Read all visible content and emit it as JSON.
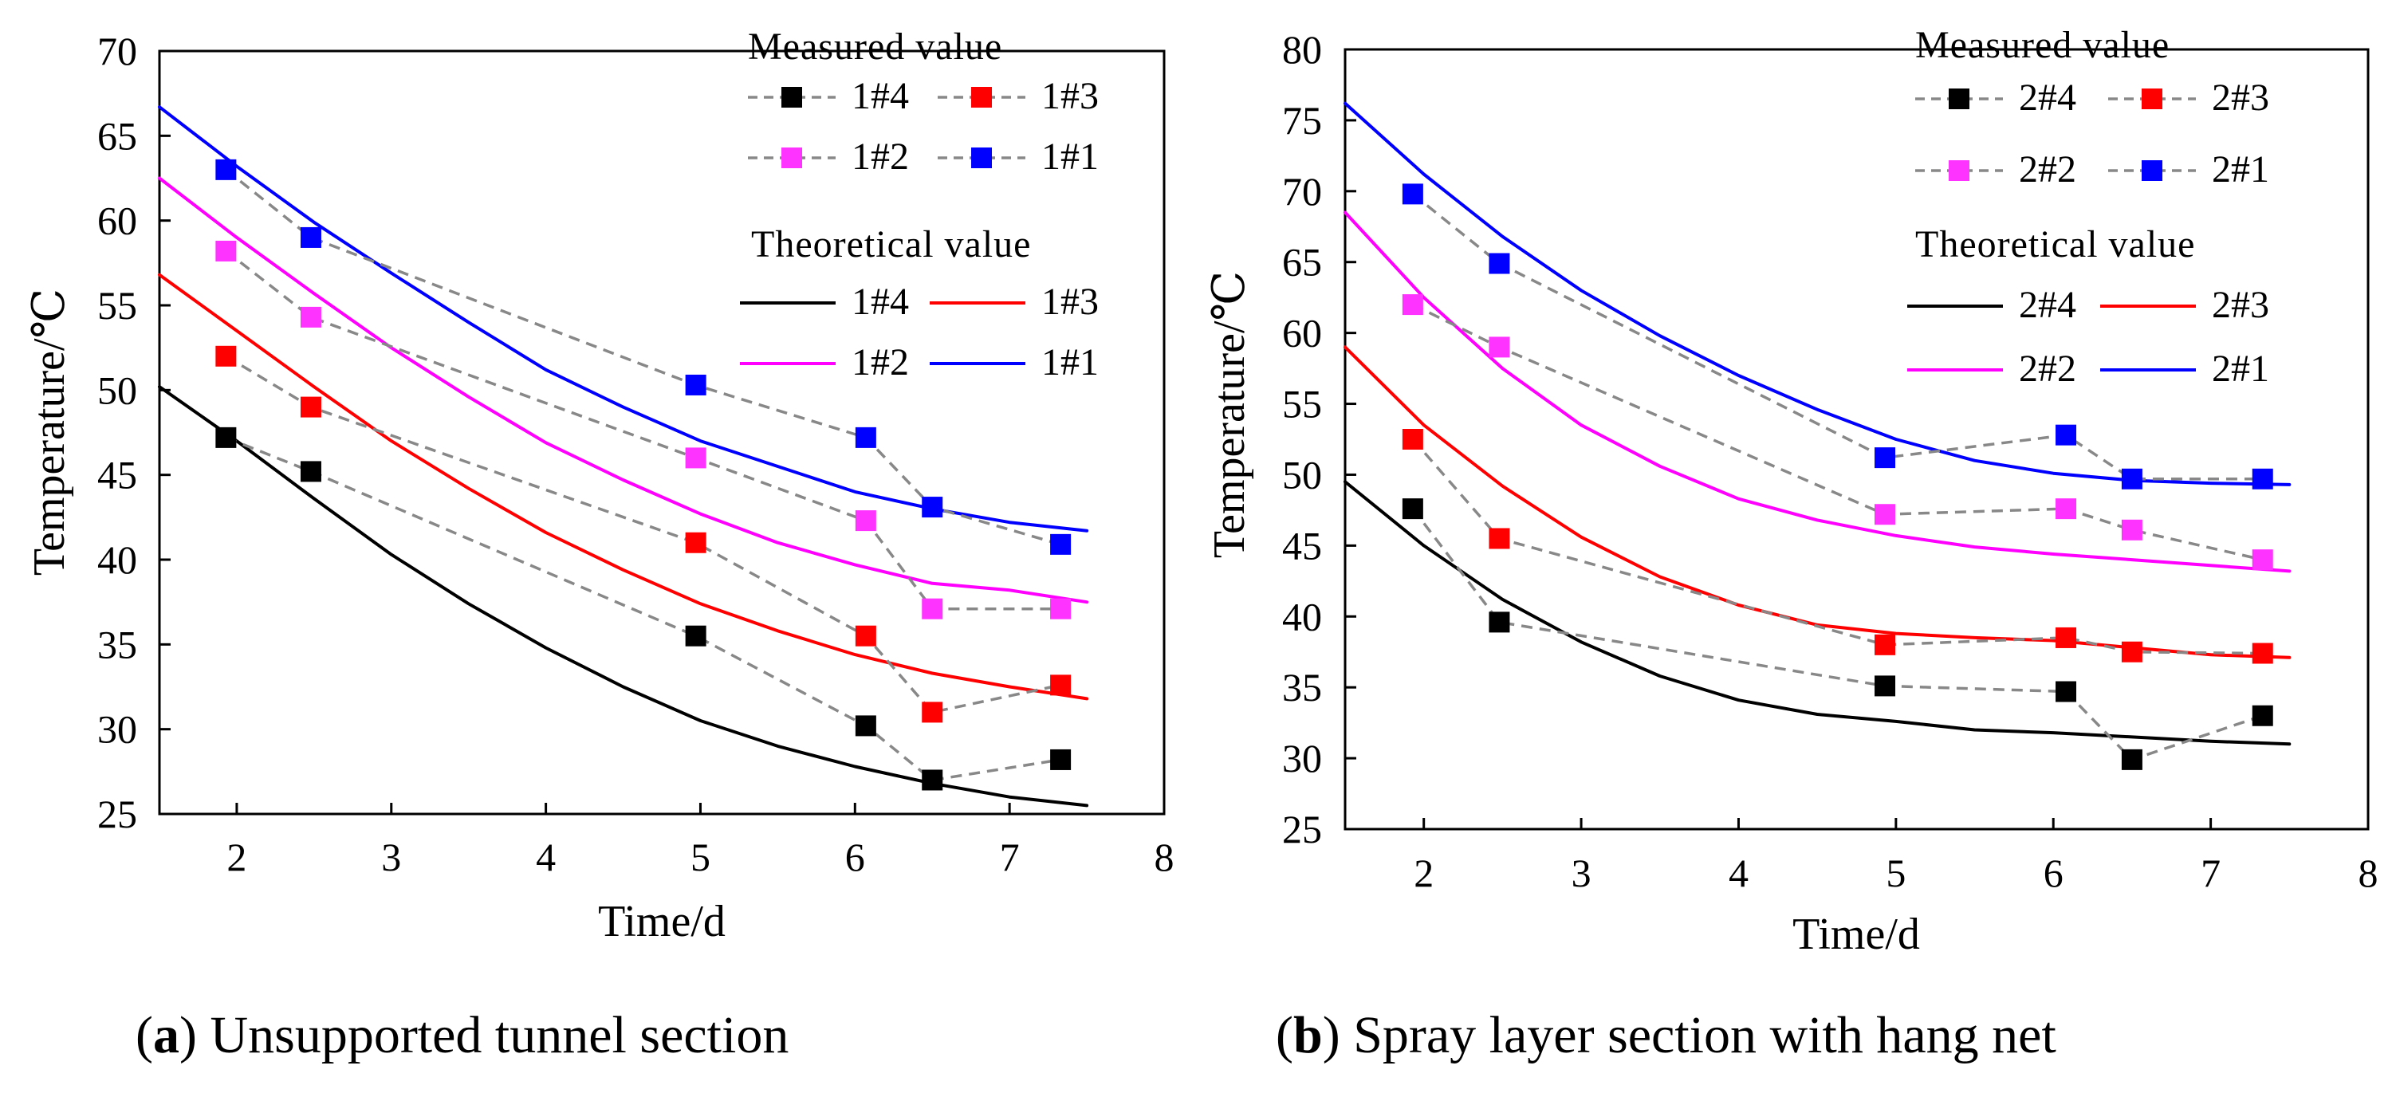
{
  "chart_data": [
    {
      "id": "a",
      "type": "line",
      "caption_letter": "a",
      "caption_text": "Unsupported tunnel section",
      "xlabel": "Time/d",
      "ylabel": "Temperature/℃",
      "xlim": [
        1.5,
        8
      ],
      "ylim": [
        25,
        70
      ],
      "xticks": [
        2,
        3,
        4,
        5,
        6,
        7,
        8
      ],
      "yticks": [
        25,
        30,
        35,
        40,
        45,
        50,
        55,
        60,
        65,
        70
      ],
      "legend": {
        "measured_title": "Measured  value",
        "theoretical_title": "Theoretical value",
        "placement": "top-right"
      },
      "measured": [
        {
          "name": "1#4",
          "color": "#000000",
          "x": [
            1.93,
            2.48,
            4.97,
            6.07,
            6.5,
            7.33
          ],
          "y": [
            47.2,
            45.2,
            35.5,
            30.2,
            27.0,
            28.2
          ]
        },
        {
          "name": "1#3",
          "color": "#ff0000",
          "x": [
            1.93,
            2.48,
            4.97,
            6.07,
            6.5,
            7.33
          ],
          "y": [
            52.0,
            49.0,
            41.0,
            35.5,
            31.0,
            32.6
          ]
        },
        {
          "name": "1#2",
          "color": "#ff33ff",
          "x": [
            1.93,
            2.48,
            4.97,
            6.07,
            6.5,
            7.33
          ],
          "y": [
            58.2,
            54.3,
            46.0,
            42.3,
            37.1,
            37.1
          ]
        },
        {
          "name": "1#1",
          "color": "#0000ff",
          "x": [
            1.93,
            2.48,
            4.97,
            6.07,
            6.5,
            7.33
          ],
          "y": [
            63.0,
            59.0,
            50.3,
            47.2,
            43.1,
            40.9
          ]
        }
      ],
      "theoretical": [
        {
          "name": "1#4",
          "color": "#000000",
          "x": [
            1.5,
            2,
            2.5,
            3,
            3.5,
            4,
            4.5,
            5,
            5.5,
            6,
            6.5,
            7,
            7.5
          ],
          "y": [
            50.2,
            47.0,
            43.6,
            40.3,
            37.4,
            34.8,
            32.5,
            30.5,
            29.0,
            27.8,
            26.8,
            26.0,
            25.5
          ]
        },
        {
          "name": "1#3",
          "color": "#ff0000",
          "x": [
            1.5,
            2,
            2.5,
            3,
            3.5,
            4,
            4.5,
            5,
            5.5,
            6,
            6.5,
            7,
            7.5
          ],
          "y": [
            56.8,
            53.5,
            50.2,
            47.0,
            44.2,
            41.6,
            39.4,
            37.4,
            35.8,
            34.4,
            33.3,
            32.5,
            31.8
          ]
        },
        {
          "name": "1#2",
          "color": "#ff00ff",
          "x": [
            1.5,
            2,
            2.5,
            3,
            3.5,
            4,
            4.5,
            5,
            5.5,
            6,
            6.5,
            7,
            7.5
          ],
          "y": [
            62.5,
            59.0,
            55.7,
            52.5,
            49.6,
            46.9,
            44.7,
            42.7,
            41.0,
            39.7,
            38.6,
            38.2,
            37.5
          ]
        },
        {
          "name": "1#1",
          "color": "#0000ff",
          "x": [
            1.5,
            2,
            2.5,
            3,
            3.5,
            4,
            4.5,
            5,
            5.5,
            6,
            6.5,
            7,
            7.5
          ],
          "y": [
            66.7,
            63.2,
            59.9,
            56.9,
            54.0,
            51.2,
            49.0,
            47.0,
            45.5,
            44.0,
            43.0,
            42.2,
            41.7
          ]
        }
      ]
    },
    {
      "id": "b",
      "type": "line",
      "caption_letter": "b",
      "caption_text": "Spray layer section with hang net",
      "xlabel": "Time/d",
      "ylabel": "Temperature/℃",
      "xlim": [
        1.5,
        8
      ],
      "ylim": [
        25,
        80
      ],
      "xticks": [
        2,
        3,
        4,
        5,
        6,
        7,
        8
      ],
      "yticks": [
        25,
        30,
        35,
        40,
        45,
        50,
        55,
        60,
        65,
        70,
        75,
        80
      ],
      "legend": {
        "measured_title": "Measured  value",
        "theoretical_title": "Theoretical value",
        "placement": "top-right"
      },
      "measured": [
        {
          "name": "2#4",
          "color": "#000000",
          "x": [
            1.93,
            2.48,
            4.93,
            6.08,
            6.5,
            7.33
          ],
          "y": [
            47.6,
            39.6,
            35.1,
            34.7,
            29.9,
            33.0
          ]
        },
        {
          "name": "2#3",
          "color": "#ff0000",
          "x": [
            1.93,
            2.48,
            4.93,
            6.08,
            6.5,
            7.33
          ],
          "y": [
            52.5,
            45.5,
            38.0,
            38.5,
            37.5,
            37.4
          ]
        },
        {
          "name": "2#2",
          "color": "#ff33ff",
          "x": [
            1.93,
            2.48,
            4.93,
            6.08,
            6.5,
            7.33
          ],
          "y": [
            62.0,
            59.0,
            47.2,
            47.6,
            46.1,
            44.0
          ]
        },
        {
          "name": "2#1",
          "color": "#0000ff",
          "x": [
            1.93,
            2.48,
            4.93,
            6.08,
            6.5,
            7.33
          ],
          "y": [
            69.8,
            64.9,
            51.2,
            52.8,
            49.7,
            49.7
          ]
        }
      ],
      "theoretical": [
        {
          "name": "2#4",
          "color": "#000000",
          "x": [
            1.5,
            2,
            2.5,
            3,
            3.5,
            4,
            4.5,
            5,
            5.5,
            6,
            6.5,
            7,
            7.5
          ],
          "y": [
            49.5,
            45.0,
            41.2,
            38.2,
            35.8,
            34.1,
            33.1,
            32.6,
            32.0,
            31.8,
            31.5,
            31.2,
            31.0
          ]
        },
        {
          "name": "2#3",
          "color": "#ff0000",
          "x": [
            1.5,
            2,
            2.5,
            3,
            3.5,
            4,
            4.5,
            5,
            5.5,
            6,
            6.5,
            7,
            7.5
          ],
          "y": [
            59.0,
            53.5,
            49.2,
            45.6,
            42.8,
            40.8,
            39.4,
            38.8,
            38.5,
            38.3,
            37.8,
            37.3,
            37.1
          ]
        },
        {
          "name": "2#2",
          "color": "#ff00ff",
          "x": [
            1.5,
            2,
            2.5,
            3,
            3.5,
            4,
            4.5,
            5,
            5.5,
            6,
            6.5,
            7,
            7.5
          ],
          "y": [
            68.5,
            62.5,
            57.5,
            53.5,
            50.6,
            48.3,
            46.8,
            45.7,
            44.9,
            44.4,
            44.0,
            43.6,
            43.2
          ]
        },
        {
          "name": "2#1",
          "color": "#0000ff",
          "x": [
            1.5,
            2,
            2.5,
            3,
            3.5,
            4,
            4.5,
            5,
            5.5,
            6,
            6.5,
            7,
            7.5
          ],
          "y": [
            76.2,
            71.2,
            66.8,
            63.0,
            59.8,
            57.0,
            54.6,
            52.5,
            51.0,
            50.1,
            49.6,
            49.4,
            49.3
          ]
        }
      ]
    }
  ]
}
